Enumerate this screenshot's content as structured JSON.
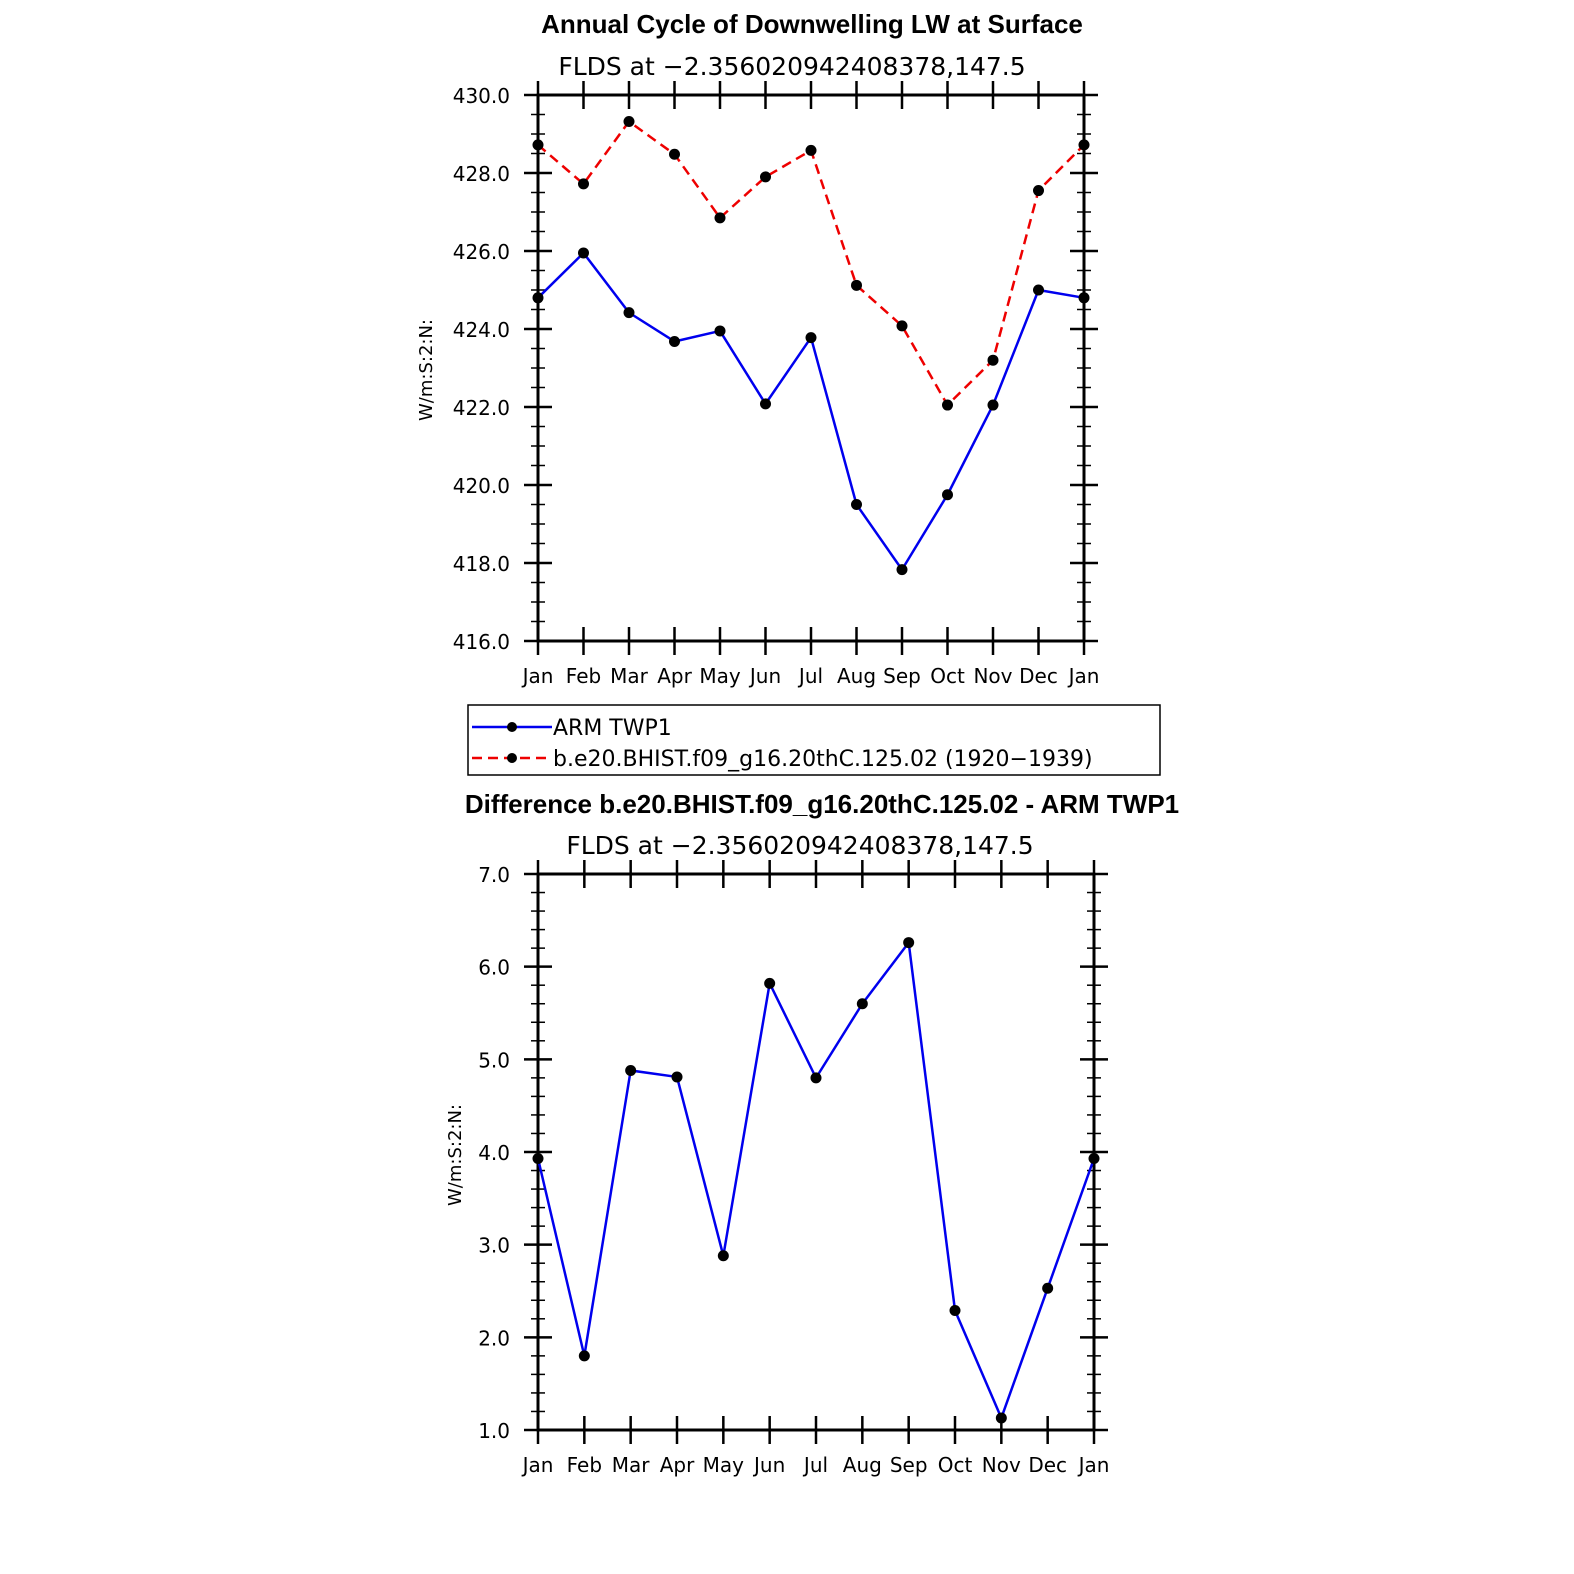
{
  "chart_data": [
    {
      "type": "line",
      "title": "Annual Cycle of Downwelling LW at Surface",
      "subtitle": "FLDS at −2.356020942408378,147.5",
      "xlabel": "",
      "ylabel": "W/m:S:2:N:",
      "categories": [
        "Jan",
        "Feb",
        "Mar",
        "Apr",
        "May",
        "Jun",
        "Jul",
        "Aug",
        "Sep",
        "Oct",
        "Nov",
        "Dec",
        "Jan"
      ],
      "ylim": [
        416.0,
        430.0
      ],
      "yticks": [
        "416.0",
        "418.0",
        "420.0",
        "422.0",
        "424.0",
        "426.0",
        "428.0",
        "430.0"
      ],
      "grid": false,
      "legend_position": "below",
      "series": [
        {
          "name": "ARM  TWP1",
          "color": "#0000ee",
          "dash": "solid",
          "values": [
            424.8,
            425.95,
            424.42,
            423.68,
            423.95,
            422.08,
            423.78,
            419.5,
            417.83,
            419.75,
            422.05,
            425.0,
            424.8
          ]
        },
        {
          "name": "b.e20.BHIST.f09_g16.20thC.125.02 (1920−1939)",
          "color": "#ee0000",
          "dash": "dashed",
          "values": [
            428.72,
            427.72,
            429.32,
            428.48,
            426.85,
            427.9,
            428.58,
            425.12,
            424.08,
            422.05,
            423.2,
            427.55,
            428.72
          ]
        }
      ]
    },
    {
      "type": "line",
      "title": "Difference b.e20.BHIST.f09_g16.20thC.125.02 - ARM TWP1",
      "subtitle": "FLDS at −2.356020942408378,147.5",
      "xlabel": "",
      "ylabel": "W/m:S:2:N:",
      "categories": [
        "Jan",
        "Feb",
        "Mar",
        "Apr",
        "May",
        "Jun",
        "Jul",
        "Aug",
        "Sep",
        "Oct",
        "Nov",
        "Dec",
        "Jan"
      ],
      "ylim": [
        1.0,
        7.0
      ],
      "yticks": [
        "1.0",
        "2.0",
        "3.0",
        "4.0",
        "5.0",
        "6.0",
        "7.0"
      ],
      "grid": false,
      "series": [
        {
          "color": "#0000ee",
          "dash": "solid",
          "values": [
            3.93,
            1.8,
            4.88,
            4.81,
            2.88,
            5.82,
            4.8,
            5.6,
            6.26,
            2.29,
            1.13,
            2.53,
            3.93
          ]
        }
      ]
    }
  ]
}
